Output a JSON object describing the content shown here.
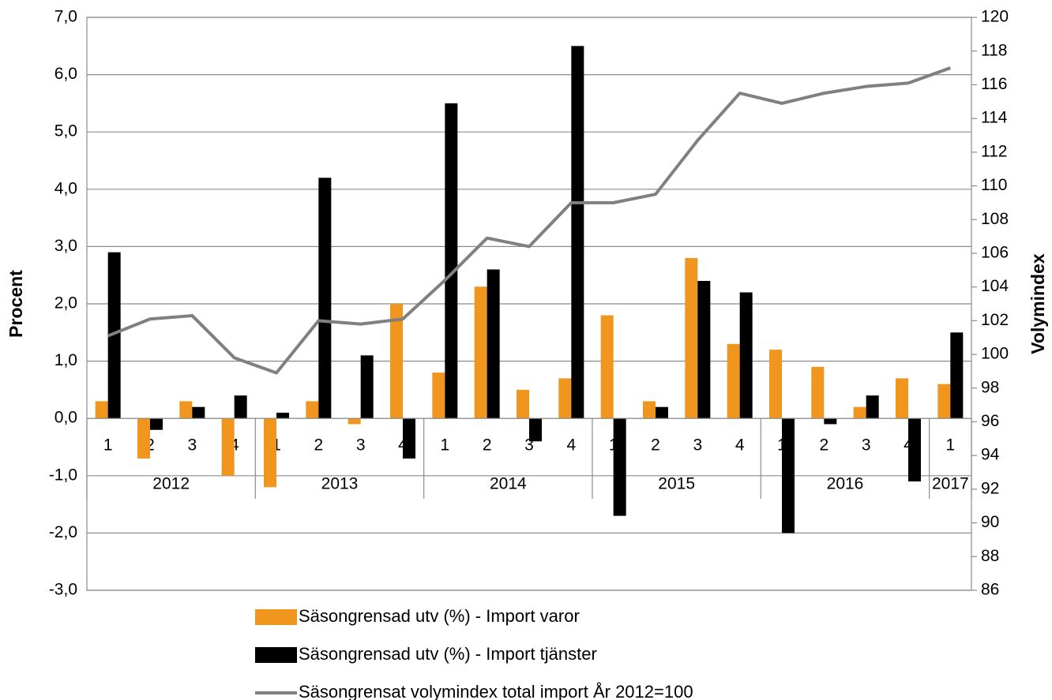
{
  "chart_data": {
    "type": "bar_line",
    "y_label": "Procent",
    "y2_label": "Volymindex",
    "categories": [
      "1",
      "2",
      "3",
      "4",
      "1",
      "2",
      "3",
      "4",
      "1",
      "2",
      "3",
      "4",
      "1",
      "2",
      "3",
      "4",
      "1",
      "2",
      "3",
      "4",
      "1"
    ],
    "category_groups": [
      {
        "label": "2012",
        "span": 4
      },
      {
        "label": "2013",
        "span": 4
      },
      {
        "label": "2014",
        "span": 4
      },
      {
        "label": "2015",
        "span": 4
      },
      {
        "label": "2016",
        "span": 4
      },
      {
        "label": "2017",
        "span": 1
      }
    ],
    "series": [
      {
        "name": "Säsongrensad utv (%) - Import varor",
        "type": "bar",
        "color": "#f0961e",
        "values": [
          0.3,
          -0.7,
          0.3,
          -1.0,
          -1.2,
          0.3,
          -0.1,
          2.0,
          0.8,
          2.3,
          0.5,
          0.7,
          1.8,
          0.3,
          2.8,
          1.3,
          1.2,
          0.9,
          0.2,
          0.7,
          0.6
        ]
      },
      {
        "name": "Säsongrensad utv (%) - Import tjänster",
        "type": "bar",
        "color": "#000000",
        "values": [
          2.9,
          -0.2,
          0.2,
          0.4,
          0.1,
          4.2,
          1.1,
          -0.7,
          5.5,
          2.6,
          -0.4,
          6.5,
          -1.7,
          0.2,
          2.4,
          2.2,
          -2.0,
          -0.1,
          0.4,
          -1.1,
          1.5
        ]
      },
      {
        "name": "Säsongrensat volymindex total import År 2012=100",
        "type": "line",
        "axis": "y2",
        "color": "#808080",
        "values": [
          101.1,
          102.1,
          102.3,
          99.8,
          98.9,
          102.0,
          101.8,
          102.1,
          104.4,
          106.9,
          106.4,
          109.0,
          109.0,
          109.5,
          112.7,
          115.5,
          114.9,
          115.5,
          115.9,
          116.1,
          117.0
        ]
      }
    ],
    "ylim": [
      -3,
      7
    ],
    "yticks": [
      {
        "value": -3,
        "label": "-3,0"
      },
      {
        "value": -2,
        "label": "-2,0"
      },
      {
        "value": -1,
        "label": "-1,0"
      },
      {
        "value": 0,
        "label": "0,0"
      },
      {
        "value": 1,
        "label": "1,0"
      },
      {
        "value": 2,
        "label": "2,0"
      },
      {
        "value": 3,
        "label": "3,0"
      },
      {
        "value": 4,
        "label": "4,0"
      },
      {
        "value": 5,
        "label": "5,0"
      },
      {
        "value": 6,
        "label": "6,0"
      },
      {
        "value": 7,
        "label": "7,0"
      }
    ],
    "y2lim": [
      86,
      120
    ],
    "y2ticks": [
      86,
      88,
      90,
      92,
      94,
      96,
      98,
      100,
      102,
      104,
      106,
      108,
      110,
      112,
      114,
      116,
      118,
      120
    ],
    "grid": true
  }
}
